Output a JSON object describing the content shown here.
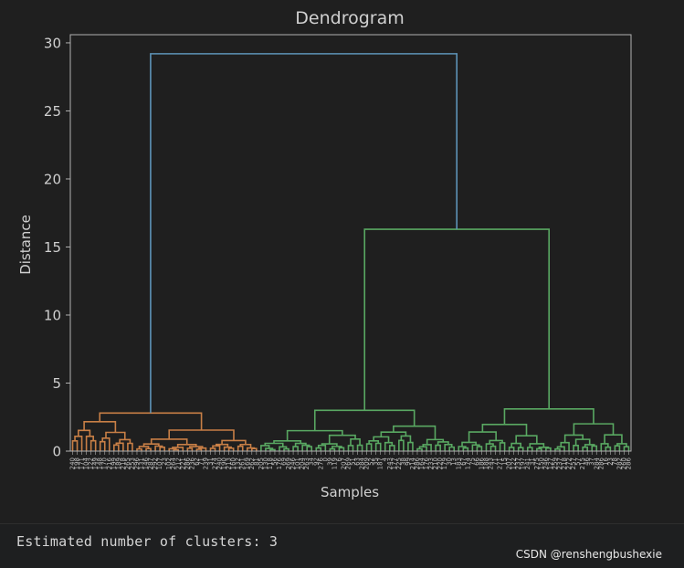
{
  "chart_data": {
    "type": "dendrogram",
    "title": "Dendrogram",
    "xlabel": "Samples",
    "ylabel": "Distance",
    "ylim": [
      0,
      30.6
    ],
    "yticks": [
      0,
      5,
      10,
      15,
      20,
      25,
      30
    ],
    "grid": false,
    "colors": {
      "cluster_1": "#c87f46",
      "cluster_2": "#59a862",
      "cluster_3": "#59a862",
      "above_threshold": "#5d93b7",
      "axes": "#b0b0b0",
      "text": "#d0d0d0"
    },
    "merge_heights": {
      "root": 29.2,
      "green_top": 16.3,
      "orange_top": 2.8,
      "green_left": 3.0,
      "green_right": 3.1
    }
  },
  "output": {
    "text": "Estimated number of clusters: 3"
  },
  "watermark": "CSDN @renshengbushexie"
}
